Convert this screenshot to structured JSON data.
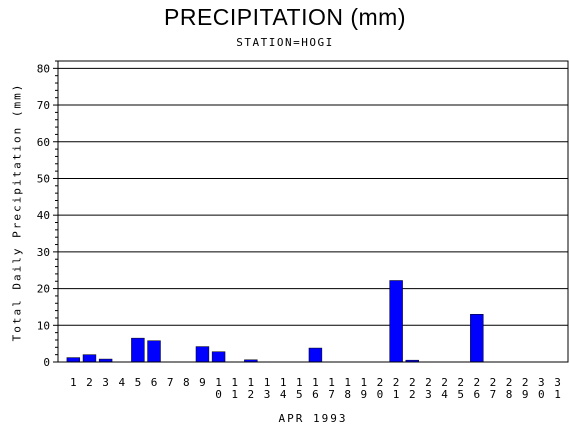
{
  "chart_data": {
    "type": "bar",
    "title": "PRECIPITATION (mm)",
    "subtitle": "STATION=HOGI",
    "ylabel": "Total Daily Precipitation (mm)",
    "xlabel": "APR 1993",
    "ylim": [
      0,
      82
    ],
    "yticks": [
      0,
      10,
      20,
      30,
      40,
      50,
      60,
      70,
      80
    ],
    "grid": true,
    "bar_color": "#0000ff",
    "categories": [
      "1",
      "2",
      "3",
      "4",
      "5",
      "6",
      "7",
      "8",
      "9",
      "10",
      "11",
      "12",
      "13",
      "14",
      "15",
      "16",
      "17",
      "18",
      "19",
      "20",
      "21",
      "22",
      "23",
      "24",
      "25",
      "26",
      "27",
      "28",
      "29",
      "30",
      "31"
    ],
    "values": [
      1.2,
      2.0,
      0.8,
      0,
      6.5,
      5.8,
      0,
      0,
      4.2,
      2.8,
      0,
      0.6,
      0,
      0,
      0,
      3.8,
      0,
      0,
      0,
      0,
      22.2,
      0.5,
      0,
      0,
      0,
      13.0,
      0,
      0,
      0,
      0,
      0
    ]
  }
}
